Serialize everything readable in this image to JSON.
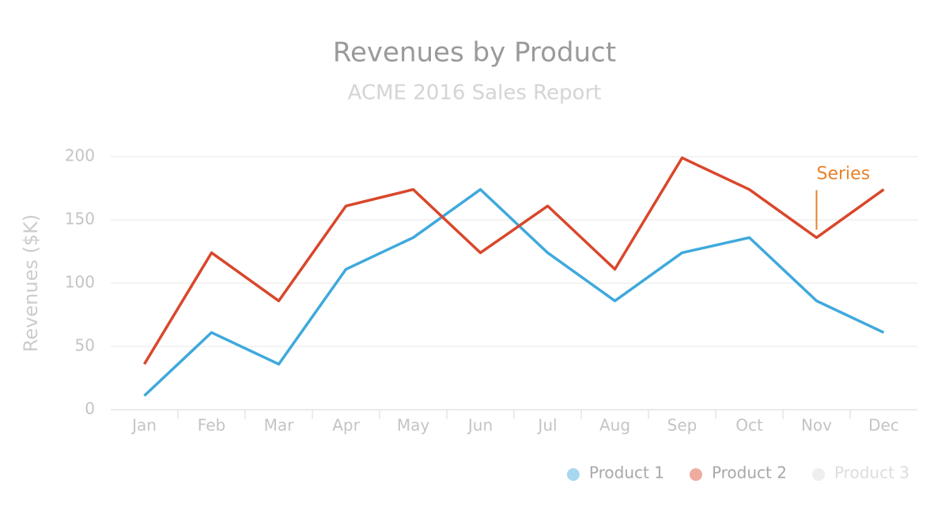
{
  "chart_data": {
    "type": "line",
    "title": "Revenues by Product",
    "subtitle": "ACME 2016 Sales Report",
    "y_label": "Revenues ($K)",
    "categories": [
      "Jan",
      "Feb",
      "Mar",
      "Apr",
      "May",
      "Jun",
      "Jul",
      "Aug",
      "Sep",
      "Oct",
      "Nov",
      "Dec"
    ],
    "series": [
      {
        "name": "Product 1",
        "color": "#3fa9dc",
        "visible": true,
        "values": [
          11,
          61,
          36,
          111,
          136,
          174,
          124,
          86,
          124,
          136,
          86,
          61
        ]
      },
      {
        "name": "Product 2",
        "color": "#d9472b",
        "visible": true,
        "values": [
          36,
          124,
          86,
          161,
          174,
          124,
          161,
          111,
          199,
          174,
          136,
          174
        ]
      },
      {
        "name": "Product 3",
        "color": "#eeeeee",
        "visible": false,
        "values": [
          null,
          null,
          null,
          null,
          null,
          null,
          null,
          null,
          null,
          null,
          null,
          null
        ]
      }
    ],
    "ylim": [
      0,
      200
    ],
    "yticks": [
      0,
      50,
      100,
      150,
      200
    ],
    "grid": true,
    "legend": "bottom-right",
    "annotation": {
      "text": "Series",
      "series": "Product 2",
      "category": "Nov",
      "color": "#e8822a"
    }
  }
}
